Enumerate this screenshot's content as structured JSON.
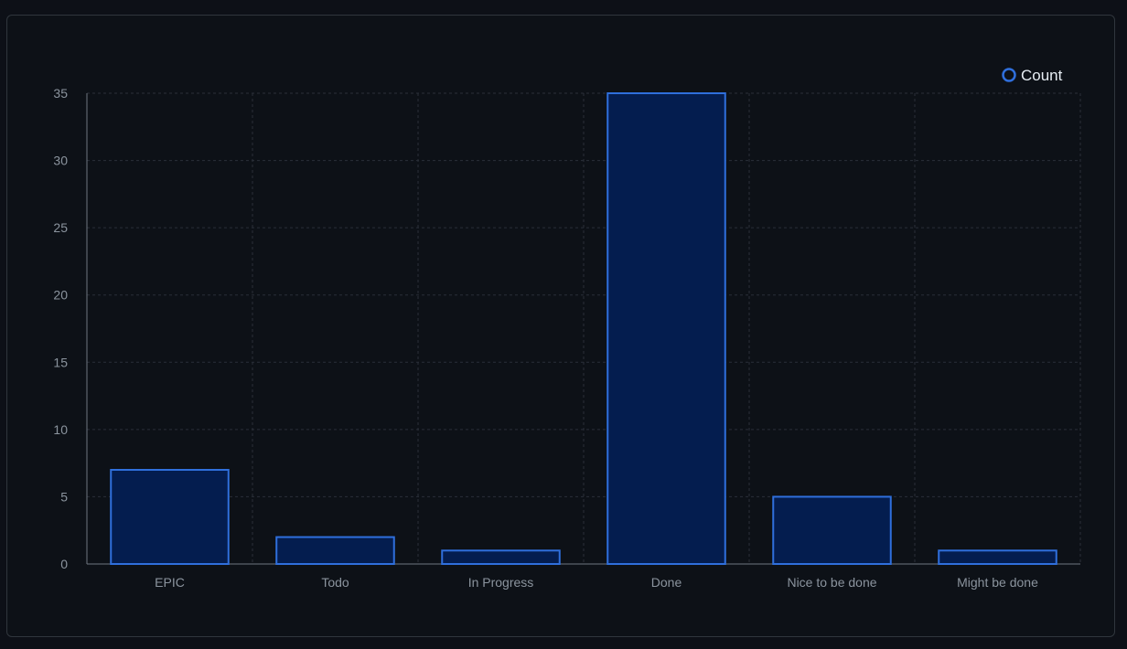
{
  "chart_data": {
    "type": "bar",
    "categories": [
      "EPIC",
      "Todo",
      "In Progress",
      "Done",
      "Nice to be done",
      "Might be done"
    ],
    "series": [
      {
        "name": "Count",
        "values": [
          7,
          2,
          1,
          35,
          5,
          1
        ]
      }
    ],
    "title": "",
    "xlabel": "",
    "ylabel": "",
    "ylim": [
      0,
      35
    ],
    "yticks": [
      0,
      5,
      10,
      15,
      20,
      25,
      30,
      35
    ],
    "grid": true,
    "legend": "top-right",
    "colors": {
      "bar_fill": "#041d4f",
      "bar_stroke": "#2f6fdc",
      "grid": "#2a2f38",
      "axis": "#6e7681",
      "text": "#8b949e",
      "legend_text": "#e6edf3"
    }
  }
}
